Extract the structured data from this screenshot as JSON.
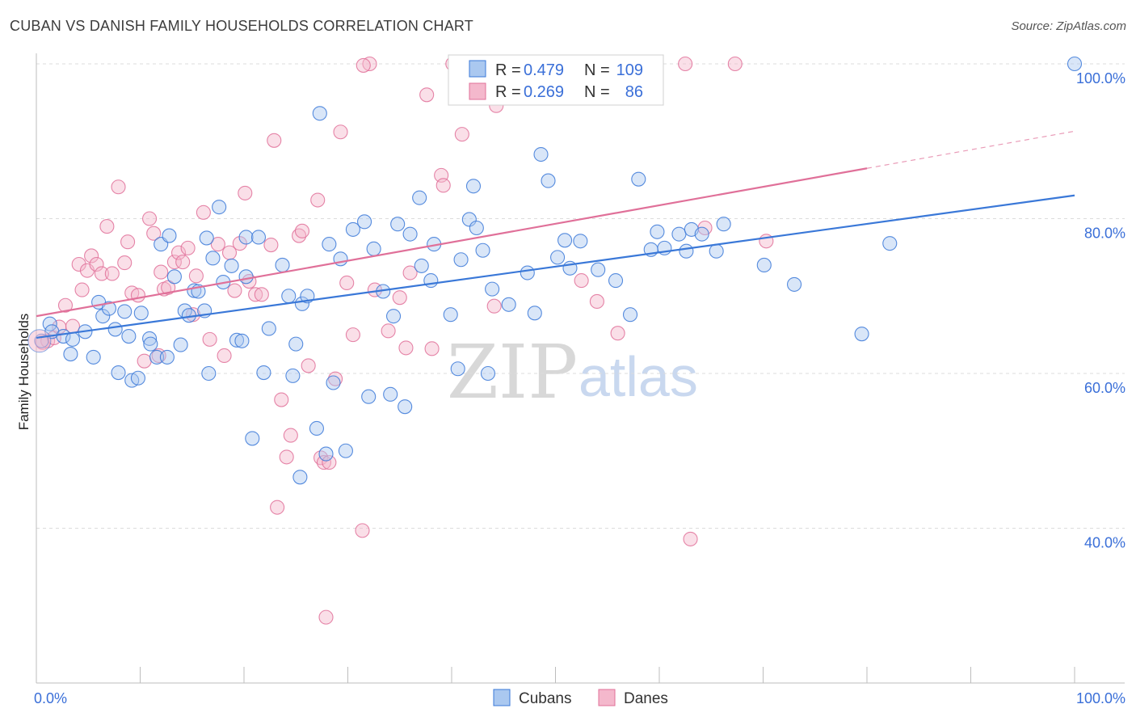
{
  "title": "CUBAN VS DANISH FAMILY HOUSEHOLDS CORRELATION CHART",
  "source": "Source: ZipAtlas.com",
  "watermark": {
    "zip": "ZIP",
    "atlas": "atlas"
  },
  "colors": {
    "cubans": "#3a78d8",
    "danes": "#e07099",
    "cubans_fill": "#aac8f0",
    "danes_fill": "#f4b8cc",
    "tick": "#3a6fd8"
  },
  "legend": {
    "r_label": "R =",
    "n_label": "N =",
    "rows": [
      {
        "r": "0.479",
        "n": "109"
      },
      {
        "r": "0.269",
        "n": "86"
      }
    ]
  },
  "chart_data": {
    "type": "scatter",
    "xlabel": "",
    "ylabel": "Family Households",
    "xlim": [
      0,
      100
    ],
    "ylim": [
      20,
      100
    ],
    "x_tick_labels": [
      {
        "x": 0,
        "label": "0.0%"
      },
      {
        "x": 100,
        "label": "100.0%"
      }
    ],
    "y_tick_labels": [
      {
        "y": 40,
        "label": "40.0%"
      },
      {
        "y": 60,
        "label": "60.0%"
      },
      {
        "y": 80,
        "label": "80.0%"
      },
      {
        "y": 100,
        "label": "100.0%"
      }
    ],
    "grid": true,
    "legend_position": "top-center",
    "series": [
      {
        "name": "Cubans",
        "r": 0.479,
        "n": 109,
        "trend": {
          "x0": 0,
          "y0": 64.6,
          "x1": 100,
          "y1": 83.0
        },
        "points": [
          [
            0.5,
            64.2
          ],
          [
            1.3,
            66.4
          ],
          [
            1.5,
            65.4
          ],
          [
            2.6,
            64.8
          ],
          [
            3.3,
            62.5
          ],
          [
            3.5,
            64.4
          ],
          [
            4.7,
            65.4
          ],
          [
            5.5,
            62.1
          ],
          [
            6.0,
            69.2
          ],
          [
            6.4,
            67.4
          ],
          [
            7.0,
            68.4
          ],
          [
            7.6,
            65.7
          ],
          [
            7.9,
            60.1
          ],
          [
            8.5,
            68.0
          ],
          [
            8.9,
            64.8
          ],
          [
            9.2,
            59.1
          ],
          [
            9.8,
            59.4
          ],
          [
            10.1,
            67.8
          ],
          [
            10.9,
            64.5
          ],
          [
            11.6,
            62.1
          ],
          [
            12.0,
            76.7
          ],
          [
            12.6,
            62.1
          ],
          [
            12.8,
            77.8
          ],
          [
            13.3,
            72.5
          ],
          [
            13.9,
            63.7
          ],
          [
            14.3,
            68.1
          ],
          [
            14.7,
            67.5
          ],
          [
            15.2,
            70.7
          ],
          [
            15.6,
            70.6
          ],
          [
            16.4,
            77.5
          ],
          [
            16.6,
            60.0
          ],
          [
            17.0,
            74.9
          ],
          [
            17.6,
            81.5
          ],
          [
            18.0,
            71.8
          ],
          [
            18.8,
            73.9
          ],
          [
            19.3,
            64.3
          ],
          [
            19.8,
            64.2
          ],
          [
            20.2,
            77.6
          ],
          [
            20.8,
            51.6
          ],
          [
            21.4,
            77.6
          ],
          [
            21.9,
            60.1
          ],
          [
            22.4,
            65.8
          ],
          [
            23.7,
            74.0
          ],
          [
            24.3,
            70.0
          ],
          [
            24.7,
            59.7
          ],
          [
            25.0,
            63.8
          ],
          [
            25.4,
            46.6
          ],
          [
            25.6,
            69.0
          ],
          [
            26.1,
            70.0
          ],
          [
            27.0,
            52.9
          ],
          [
            27.3,
            93.6
          ],
          [
            27.9,
            49.6
          ],
          [
            28.2,
            76.7
          ],
          [
            28.6,
            58.8
          ],
          [
            29.3,
            74.8
          ],
          [
            29.8,
            50.0
          ],
          [
            30.5,
            78.6
          ],
          [
            31.6,
            79.6
          ],
          [
            32.0,
            57.0
          ],
          [
            32.5,
            76.1
          ],
          [
            33.4,
            70.6
          ],
          [
            34.1,
            57.3
          ],
          [
            34.4,
            67.4
          ],
          [
            34.8,
            79.3
          ],
          [
            35.5,
            55.7
          ],
          [
            36.0,
            78.0
          ],
          [
            36.9,
            82.7
          ],
          [
            37.1,
            73.9
          ],
          [
            38.0,
            72.0
          ],
          [
            39.9,
            67.6
          ],
          [
            40.6,
            60.6
          ],
          [
            40.9,
            74.7
          ],
          [
            41.7,
            79.9
          ],
          [
            42.1,
            84.2
          ],
          [
            42.4,
            78.8
          ],
          [
            43.0,
            75.9
          ],
          [
            43.5,
            60.0
          ],
          [
            43.9,
            70.9
          ],
          [
            45.5,
            68.9
          ],
          [
            47.3,
            73.0
          ],
          [
            48.0,
            67.8
          ],
          [
            48.6,
            88.3
          ],
          [
            49.3,
            84.9
          ],
          [
            50.2,
            75.0
          ],
          [
            50.9,
            77.2
          ],
          [
            51.4,
            73.6
          ],
          [
            52.4,
            77.1
          ],
          [
            54.1,
            73.4
          ],
          [
            55.8,
            72.0
          ],
          [
            57.2,
            67.6
          ],
          [
            58.0,
            85.1
          ],
          [
            59.2,
            76.0
          ],
          [
            59.8,
            78.3
          ],
          [
            60.5,
            76.2
          ],
          [
            61.9,
            78.0
          ],
          [
            62.6,
            75.8
          ],
          [
            63.1,
            78.6
          ],
          [
            64.1,
            78.0
          ],
          [
            65.5,
            75.8
          ],
          [
            66.2,
            79.3
          ],
          [
            70.1,
            74.0
          ],
          [
            73.0,
            71.5
          ],
          [
            79.5,
            65.1
          ],
          [
            82.2,
            76.8
          ],
          [
            100.0,
            100.0
          ],
          [
            38.3,
            76.7
          ],
          [
            20.2,
            72.5
          ],
          [
            16.2,
            68.1
          ],
          [
            11.0,
            63.8
          ]
        ]
      },
      {
        "name": "Danes",
        "r": 0.269,
        "n": 86,
        "trend": {
          "x0": 0,
          "y0": 67.4,
          "x1": 80,
          "y1": 86.5
        },
        "trend_dashed": {
          "x0": 80,
          "y0": 86.5,
          "x1": 100,
          "y1": 91.3
        },
        "points": [
          [
            0.6,
            64.0
          ],
          [
            1.1,
            64.2
          ],
          [
            1.7,
            64.6
          ],
          [
            2.2,
            66.0
          ],
          [
            2.8,
            68.8
          ],
          [
            3.5,
            66.1
          ],
          [
            4.1,
            74.1
          ],
          [
            4.4,
            70.8
          ],
          [
            4.9,
            73.3
          ],
          [
            5.3,
            75.2
          ],
          [
            5.8,
            74.1
          ],
          [
            6.3,
            72.9
          ],
          [
            6.8,
            79.0
          ],
          [
            7.3,
            72.9
          ],
          [
            7.9,
            84.1
          ],
          [
            8.5,
            74.3
          ],
          [
            8.8,
            77.0
          ],
          [
            9.2,
            70.4
          ],
          [
            9.8,
            70.1
          ],
          [
            10.4,
            61.6
          ],
          [
            10.9,
            80.0
          ],
          [
            11.3,
            78.1
          ],
          [
            11.8,
            62.3
          ],
          [
            12.3,
            70.9
          ],
          [
            12.7,
            71.1
          ],
          [
            13.3,
            74.4
          ],
          [
            13.7,
            75.6
          ],
          [
            14.1,
            74.4
          ],
          [
            14.6,
            76.2
          ],
          [
            15.1,
            67.6
          ],
          [
            15.4,
            72.6
          ],
          [
            16.1,
            80.8
          ],
          [
            16.7,
            64.4
          ],
          [
            17.5,
            76.7
          ],
          [
            18.1,
            62.3
          ],
          [
            18.6,
            75.6
          ],
          [
            19.1,
            70.7
          ],
          [
            19.6,
            76.8
          ],
          [
            20.1,
            83.3
          ],
          [
            20.5,
            71.9
          ],
          [
            21.1,
            70.2
          ],
          [
            21.7,
            70.2
          ],
          [
            22.6,
            76.6
          ],
          [
            22.9,
            90.1
          ],
          [
            23.2,
            42.7
          ],
          [
            23.6,
            56.6
          ],
          [
            24.1,
            49.2
          ],
          [
            24.5,
            52.0
          ],
          [
            25.3,
            77.8
          ],
          [
            25.6,
            78.4
          ],
          [
            26.2,
            61.0
          ],
          [
            27.1,
            82.4
          ],
          [
            27.4,
            49.1
          ],
          [
            27.7,
            48.5
          ],
          [
            27.9,
            28.5
          ],
          [
            28.2,
            48.5
          ],
          [
            28.8,
            59.3
          ],
          [
            29.3,
            91.2
          ],
          [
            29.9,
            71.7
          ],
          [
            30.5,
            65.0
          ],
          [
            31.4,
            39.7
          ],
          [
            32.1,
            100.0
          ],
          [
            32.6,
            70.8
          ],
          [
            33.9,
            65.5
          ],
          [
            35.0,
            69.8
          ],
          [
            35.6,
            63.3
          ],
          [
            37.6,
            96.0
          ],
          [
            38.1,
            63.2
          ],
          [
            39.0,
            85.6
          ],
          [
            39.2,
            84.3
          ],
          [
            40.1,
            100.0
          ],
          [
            41.0,
            90.9
          ],
          [
            44.1,
            68.7
          ],
          [
            44.3,
            94.6
          ],
          [
            52.5,
            72.0
          ],
          [
            52.6,
            100.0
          ],
          [
            54.0,
            69.3
          ],
          [
            56.0,
            65.2
          ],
          [
            62.5,
            100.0
          ],
          [
            63.0,
            38.6
          ],
          [
            64.4,
            78.8
          ],
          [
            67.3,
            100.0
          ],
          [
            70.3,
            77.1
          ],
          [
            12.0,
            73.1
          ],
          [
            31.5,
            99.8
          ],
          [
            36.0,
            73.0
          ]
        ]
      }
    ]
  }
}
